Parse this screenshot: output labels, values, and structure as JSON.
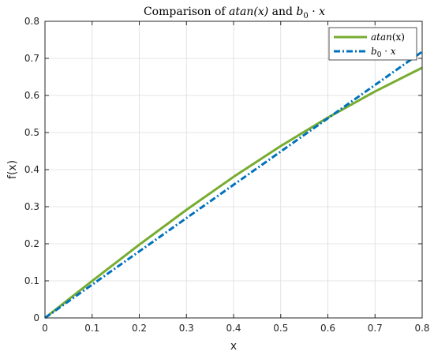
{
  "chart_data": {
    "type": "line",
    "title": "Comparison of atan(x) and b₀ · x",
    "title_parts": {
      "prefix": "Comparison of ",
      "f1": "atan",
      "f1_arg": "(x)",
      "conj": " and ",
      "b": "b",
      "b_sub": "0",
      "dot": " · ",
      "x": "x"
    },
    "xlabel": "x",
    "ylabel": "f(x)",
    "xlim": [
      0,
      0.8
    ],
    "ylim": [
      0,
      0.8
    ],
    "xticks": [
      "0",
      "0.1",
      "0.2",
      "0.3",
      "0.4",
      "0.5",
      "0.6",
      "0.7",
      "0.8"
    ],
    "yticks": [
      "0",
      "0.1",
      "0.2",
      "0.3",
      "0.4",
      "0.5",
      "0.6",
      "0.7",
      "0.8"
    ],
    "grid": true,
    "legend_position": "top-right",
    "series": [
      {
        "name": "atan(x)",
        "legend_label": {
          "fn": "atan",
          "arg": "(x)"
        },
        "color": "#77AC30",
        "style": "solid",
        "x": [
          0,
          0.1,
          0.2,
          0.3,
          0.4,
          0.5,
          0.6,
          0.7,
          0.8
        ],
        "y": [
          0,
          0.0997,
          0.1974,
          0.2915,
          0.3805,
          0.4636,
          0.5404,
          0.6107,
          0.6747
        ]
      },
      {
        "name": "b₀ · x",
        "legend_label": {
          "b": "b",
          "sub": "0",
          "dot": " · ",
          "x": "x"
        },
        "color": "#0072BD",
        "style": "dashdot",
        "x": [
          0,
          0.8
        ],
        "y": [
          0,
          0.718
        ]
      }
    ]
  }
}
